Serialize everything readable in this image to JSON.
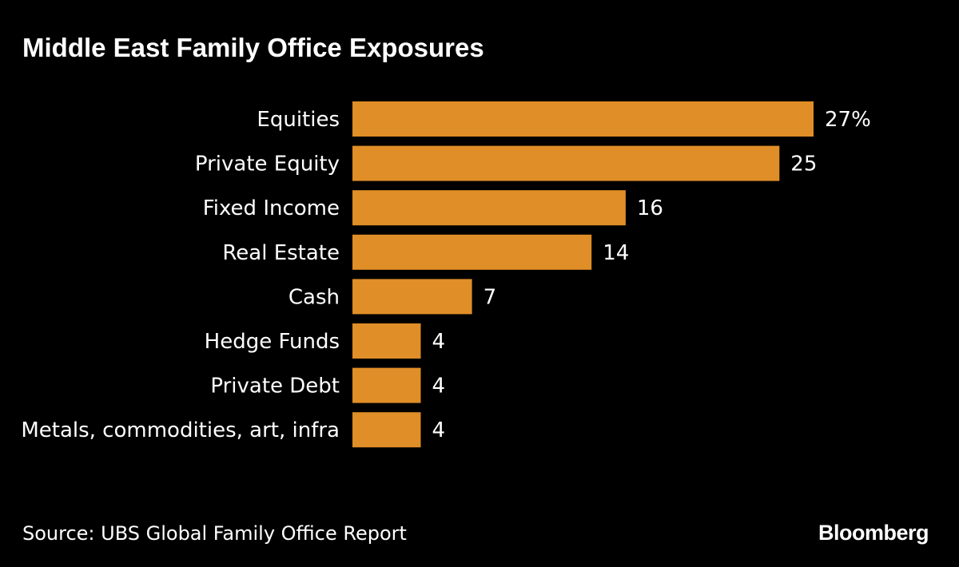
{
  "chart_data": {
    "type": "bar",
    "orientation": "horizontal",
    "title": "Middle East Family Office Exposures",
    "categories": [
      "Equities",
      "Private Equity",
      "Fixed Income",
      "Real Estate",
      "Cash",
      "Hedge Funds",
      "Private Debt",
      "Metals, commodities, art, infra"
    ],
    "values": [
      27,
      25,
      16,
      14,
      7,
      4,
      4,
      4
    ],
    "value_labels": [
      "27%",
      "25",
      "16",
      "14",
      "7",
      "4",
      "4",
      "4"
    ],
    "xlabel": "",
    "ylabel": "",
    "xlim": [
      0,
      27
    ],
    "grid": false,
    "bar_color": "#e08e27"
  },
  "footer": {
    "source": "Source: UBS Global Family Office Report",
    "brand": "Bloomberg"
  },
  "colors": {
    "background": "#000000",
    "text": "#ffffff",
    "bar": "#e08e27"
  }
}
